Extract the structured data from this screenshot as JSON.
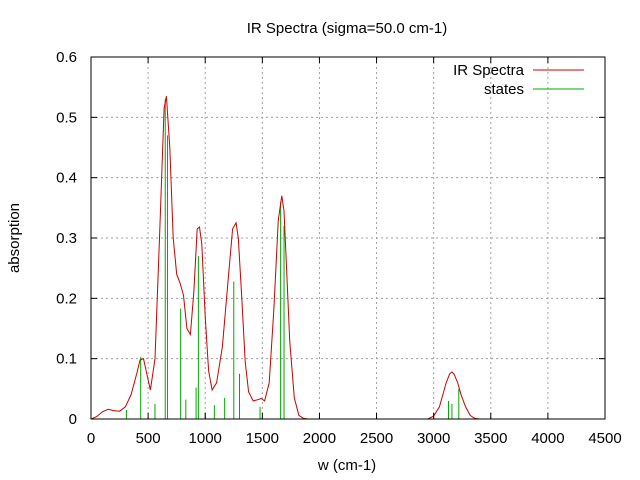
{
  "chart_data": {
    "type": "line",
    "title": "IR Spectra (sigma=50.0 cm-1)",
    "xlabel": "w (cm-1)",
    "ylabel": "absorption",
    "xlim": [
      0,
      4500
    ],
    "ylim": [
      0,
      0.6
    ],
    "x_ticks": [
      0,
      500,
      1000,
      1500,
      2000,
      2500,
      3000,
      3500,
      4000,
      4500
    ],
    "y_ticks": [
      "0",
      "0.1",
      "0.2",
      "0.3",
      "0.4",
      "0.5",
      "0.6"
    ],
    "grid": true,
    "legend_position": "top-right",
    "series": [
      {
        "name": "IR Spectra",
        "color": "#cc0000",
        "x": [
          0,
          50,
          100,
          150,
          200,
          250,
          300,
          350,
          400,
          430,
          460,
          500,
          520,
          560,
          600,
          640,
          660,
          690,
          720,
          750,
          780,
          810,
          840,
          870,
          900,
          930,
          950,
          970,
          1000,
          1030,
          1060,
          1100,
          1150,
          1200,
          1240,
          1270,
          1290,
          1320,
          1350,
          1380,
          1420,
          1460,
          1490,
          1520,
          1560,
          1600,
          1640,
          1670,
          1690,
          1710,
          1740,
          1780,
          1820,
          1860,
          1900,
          2000,
          2500,
          2950,
          3000,
          3050,
          3080,
          3110,
          3140,
          3160,
          3180,
          3210,
          3240,
          3280,
          3320,
          3360,
          3400,
          3500,
          4500
        ],
        "y": [
          0.0,
          0.004,
          0.012,
          0.016,
          0.014,
          0.013,
          0.02,
          0.04,
          0.075,
          0.098,
          0.1,
          0.065,
          0.048,
          0.1,
          0.3,
          0.515,
          0.535,
          0.45,
          0.3,
          0.24,
          0.225,
          0.205,
          0.15,
          0.14,
          0.21,
          0.315,
          0.318,
          0.29,
          0.17,
          0.08,
          0.048,
          0.06,
          0.12,
          0.23,
          0.315,
          0.325,
          0.3,
          0.2,
          0.095,
          0.045,
          0.03,
          0.032,
          0.034,
          0.03,
          0.06,
          0.18,
          0.33,
          0.37,
          0.345,
          0.26,
          0.13,
          0.035,
          0.006,
          0.001,
          0.0,
          0.0,
          0.0,
          0.0,
          0.005,
          0.02,
          0.04,
          0.06,
          0.075,
          0.078,
          0.074,
          0.06,
          0.04,
          0.02,
          0.006,
          0.001,
          0.0,
          0.0,
          0.0
        ]
      },
      {
        "name": "states",
        "color": "#00aa00",
        "style": "impulse",
        "x": [
          310,
          435,
          560,
          650,
          670,
          785,
          830,
          920,
          940,
          1000,
          1080,
          1170,
          1250,
          1300,
          1480,
          1660,
          1690,
          3130,
          3160,
          3220
        ],
        "y": [
          0.015,
          0.103,
          0.025,
          0.53,
          0.47,
          0.183,
          0.032,
          0.052,
          0.27,
          0.01,
          0.023,
          0.035,
          0.228,
          0.075,
          0.02,
          0.36,
          0.32,
          0.03,
          0.025,
          0.05
        ]
      }
    ]
  }
}
